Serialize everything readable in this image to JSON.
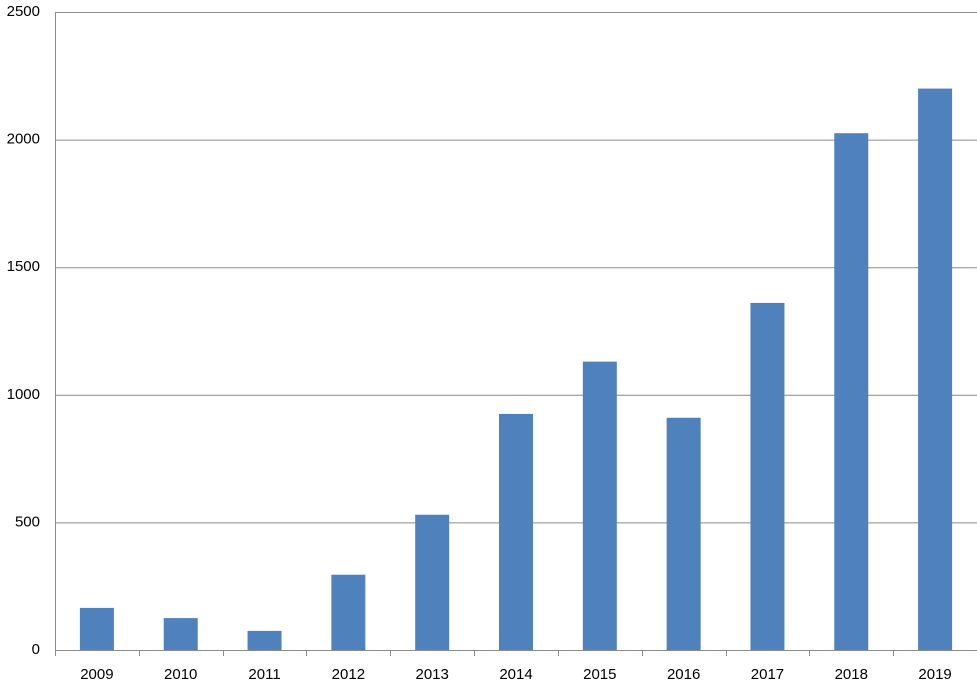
{
  "chart_data": {
    "type": "bar",
    "categories": [
      "2009",
      "2010",
      "2011",
      "2012",
      "2013",
      "2014",
      "2015",
      "2016",
      "2017",
      "2018",
      "2019"
    ],
    "values": [
      165,
      125,
      75,
      295,
      530,
      925,
      1130,
      910,
      1360,
      2025,
      2200
    ],
    "color": "#4f81bd",
    "ylim": [
      0,
      2500
    ],
    "yticks": [
      0,
      500,
      1000,
      1500,
      2000,
      2500
    ],
    "grid": true
  }
}
